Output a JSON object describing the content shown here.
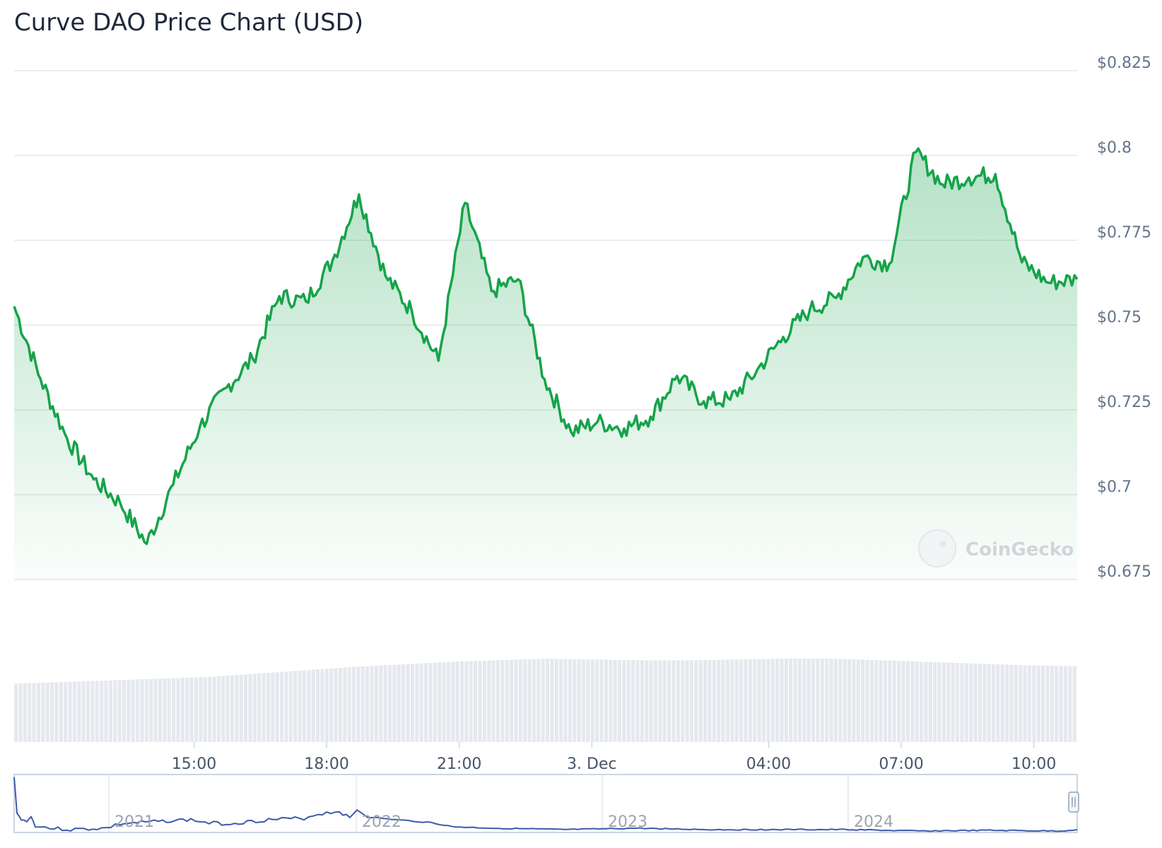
{
  "chart_data": {
    "type": "line",
    "title": "Curve DAO Price Chart (USD)",
    "currency": "USD",
    "y_ticks": [
      0.675,
      0.7,
      0.725,
      0.75,
      0.775,
      0.8,
      0.825
    ],
    "y_tick_labels": [
      "$0.675",
      "$0.7",
      "$0.725",
      "$0.75",
      "$0.775",
      "$0.8",
      "$0.825"
    ],
    "ylim": [
      0.675,
      0.825
    ],
    "x_tick_labels": [
      "15:00",
      "18:00",
      "21:00",
      "3. Dec",
      "04:00",
      "07:00",
      "10:00"
    ],
    "x_ticks_hours": [
      15,
      18,
      21,
      24,
      28,
      31,
      34
    ],
    "xlim_hours": [
      10.93,
      34.98
    ],
    "grid": true,
    "series": [
      {
        "name": "",
        "color": "#16a34a",
        "x_hours": [
          10.93,
          11.53,
          12.13,
          12.73,
          13.33,
          13.93,
          14.53,
          15.13,
          15.73,
          16.33,
          16.93,
          17.53,
          18.13,
          18.73,
          19.33,
          19.93,
          20.53,
          21.13,
          21.73,
          22.33,
          22.93,
          23.53,
          24.13,
          24.73,
          25.33,
          25.93,
          26.53,
          27.13,
          27.73,
          28.33,
          28.93,
          29.53,
          30.13,
          30.73,
          31.33,
          31.93,
          32.53,
          33.13,
          33.73,
          34.33,
          34.98
        ],
        "values": [
          0.7555,
          0.734,
          0.7165,
          0.7045,
          0.6975,
          0.6855,
          0.703,
          0.72,
          0.7315,
          0.74,
          0.7585,
          0.757,
          0.769,
          0.7885,
          0.7645,
          0.754,
          0.7395,
          0.786,
          0.76,
          0.7635,
          0.734,
          0.7185,
          0.7215,
          0.7195,
          0.723,
          0.735,
          0.7275,
          0.728,
          0.7365,
          0.7465,
          0.7545,
          0.758,
          0.77,
          0.768,
          0.801,
          0.7915,
          0.7935,
          0.7945,
          0.7685,
          0.7625,
          0.7635
        ]
      }
    ],
    "volume_series": {
      "name": "",
      "color": "#e5e9ee",
      "relative_values": [
        0.7,
        0.72,
        0.74,
        0.76,
        0.78,
        0.82,
        0.86,
        0.9,
        0.93,
        0.96,
        0.98,
        1.0,
        0.99,
        0.98,
        0.98,
        0.99,
        1.0,
        1.0,
        0.98,
        0.96,
        0.94,
        0.92,
        0.91
      ]
    },
    "navigator": {
      "x_tick_labels": [
        "2021",
        "2022",
        "2023",
        "2024"
      ],
      "color": "#3b5bab"
    },
    "watermark": "CoinGecko"
  }
}
